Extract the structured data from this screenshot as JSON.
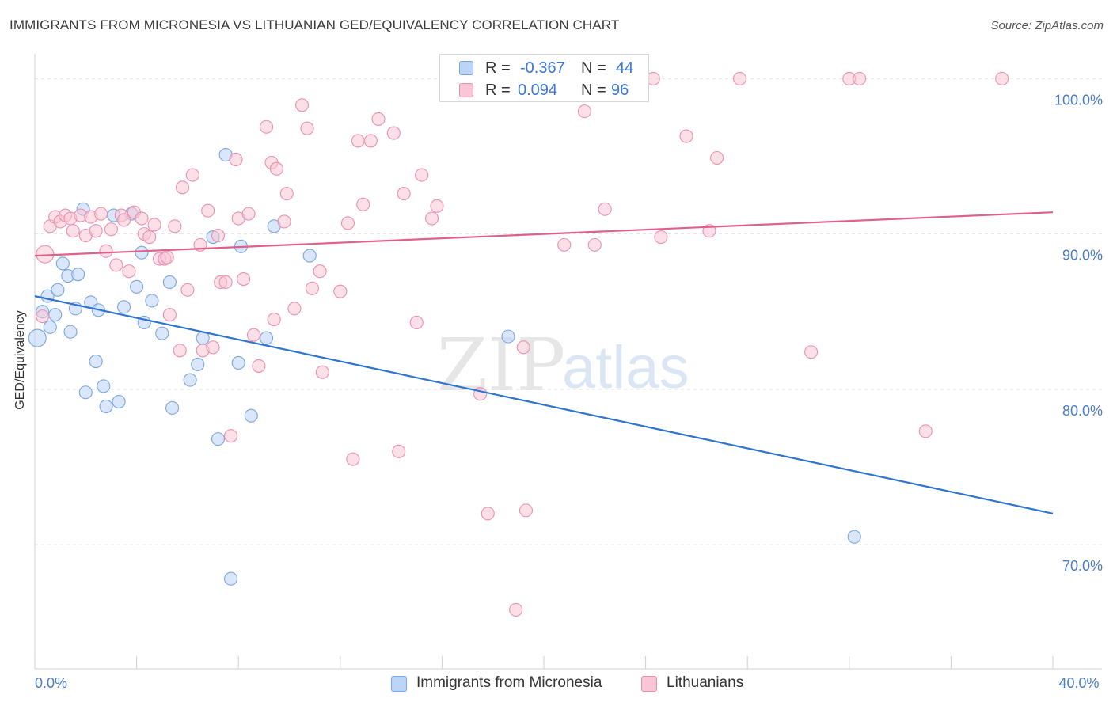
{
  "header": {
    "title": "IMMIGRANTS FROM MICRONESIA VS LITHUANIAN GED/EQUIVALENCY CORRELATION CHART",
    "source": "Source: ZipAtlas.com"
  },
  "watermark": {
    "zip": "ZIP",
    "atlas": "atlas"
  },
  "colors": {
    "blue_fill": "#bcd4f5",
    "blue_stroke": "#7aa6e0",
    "blue_line": "#2f74d0",
    "pink_fill": "#f8c6d6",
    "pink_stroke": "#ec8fb0",
    "pink_line": "#e0608c",
    "axis_label": "#4a7cc7",
    "grid": "#e3e3e3"
  },
  "stats_legend": {
    "rows": [
      {
        "r_label": "R = ",
        "r_value": "-0.367",
        "n_label": "N = ",
        "n_value": "44"
      },
      {
        "r_label": "R = ",
        "r_value": "0.094",
        "n_label": "N = ",
        "n_value": "96"
      }
    ]
  },
  "chart_data": {
    "type": "scatter",
    "title": "IMMIGRANTS FROM MICRONESIA VS LITHUANIAN GED/EQUIVALENCY CORRELATION CHART",
    "xlabel": "",
    "ylabel": "GED/Equivalency",
    "xlim": [
      0,
      40
    ],
    "ylim": [
      62,
      101.5
    ],
    "x_tick_labels": [
      {
        "value": 0,
        "label": "0.0%"
      },
      {
        "value": 40,
        "label": "40.0%"
      }
    ],
    "x_minor_ticks": [
      0,
      4,
      8,
      12,
      16,
      20,
      24,
      28,
      32,
      36,
      40
    ],
    "y_ticks": [
      {
        "value": 70,
        "label": "70.0%"
      },
      {
        "value": 80,
        "label": "80.0%"
      },
      {
        "value": 90,
        "label": "90.0%"
      },
      {
        "value": 100,
        "label": "100.0%"
      }
    ],
    "grid": true,
    "legend_position": "bottom-center",
    "series": [
      {
        "name": "Immigrants from Micronesia",
        "color": "blue",
        "trend": {
          "x": [
            0,
            40
          ],
          "y": [
            86.0,
            72.0
          ]
        },
        "points": [
          [
            0.1,
            83.3,
            2
          ],
          [
            0.3,
            85.0,
            1
          ],
          [
            0.5,
            86.0,
            1
          ],
          [
            0.6,
            84.0,
            1
          ],
          [
            0.8,
            84.8,
            1
          ],
          [
            0.9,
            86.4,
            1
          ],
          [
            1.1,
            88.1,
            1
          ],
          [
            1.3,
            87.3,
            1
          ],
          [
            1.4,
            83.7,
            1
          ],
          [
            1.6,
            85.2,
            1
          ],
          [
            1.7,
            87.4,
            1
          ],
          [
            1.9,
            91.6,
            1
          ],
          [
            2.0,
            79.8,
            1
          ],
          [
            2.2,
            85.6,
            1
          ],
          [
            2.4,
            81.8,
            1
          ],
          [
            2.5,
            85.1,
            1
          ],
          [
            2.7,
            80.2,
            1
          ],
          [
            2.8,
            78.9,
            1
          ],
          [
            3.1,
            91.2,
            1
          ],
          [
            3.3,
            79.2,
            1
          ],
          [
            3.5,
            85.3,
            1
          ],
          [
            3.8,
            91.3,
            1
          ],
          [
            4.0,
            86.6,
            1
          ],
          [
            4.2,
            88.8,
            1
          ],
          [
            4.3,
            84.3,
            1
          ],
          [
            4.6,
            85.7,
            1
          ],
          [
            5.0,
            83.6,
            1
          ],
          [
            5.3,
            86.9,
            1
          ],
          [
            5.4,
            78.8,
            1
          ],
          [
            6.1,
            80.6,
            1
          ],
          [
            6.4,
            81.6,
            1
          ],
          [
            6.6,
            83.3,
            1
          ],
          [
            7.0,
            89.8,
            1
          ],
          [
            7.2,
            76.8,
            1
          ],
          [
            7.5,
            95.1,
            1
          ],
          [
            8.0,
            81.7,
            1
          ],
          [
            8.1,
            89.2,
            1
          ],
          [
            8.5,
            78.3,
            1
          ],
          [
            9.1,
            83.3,
            1
          ],
          [
            9.4,
            90.5,
            1
          ],
          [
            10.8,
            88.6,
            1
          ],
          [
            7.7,
            67.8,
            1
          ],
          [
            18.6,
            83.4,
            1
          ],
          [
            32.2,
            70.5,
            1
          ]
        ]
      },
      {
        "name": "Lithuanians",
        "color": "pink",
        "trend": {
          "x": [
            0,
            40
          ],
          "y": [
            88.6,
            91.4
          ]
        },
        "points": [
          [
            0.3,
            84.7,
            1
          ],
          [
            0.4,
            88.7,
            2
          ],
          [
            0.6,
            90.5,
            1
          ],
          [
            0.8,
            91.1,
            1
          ],
          [
            1.0,
            90.8,
            1
          ],
          [
            1.2,
            91.2,
            1
          ],
          [
            1.4,
            91.0,
            1
          ],
          [
            1.5,
            90.2,
            1
          ],
          [
            1.8,
            91.2,
            1
          ],
          [
            2.0,
            89.9,
            1
          ],
          [
            2.2,
            91.1,
            1
          ],
          [
            2.4,
            90.2,
            1
          ],
          [
            2.6,
            91.3,
            1
          ],
          [
            2.8,
            88.9,
            1
          ],
          [
            3.0,
            90.3,
            1
          ],
          [
            3.2,
            88.0,
            1
          ],
          [
            3.4,
            91.2,
            1
          ],
          [
            3.5,
            90.9,
            1
          ],
          [
            3.7,
            87.6,
            1
          ],
          [
            3.9,
            91.4,
            1
          ],
          [
            4.2,
            91.0,
            1
          ],
          [
            4.3,
            90.0,
            1
          ],
          [
            4.5,
            89.8,
            1
          ],
          [
            4.7,
            90.6,
            1
          ],
          [
            4.9,
            88.4,
            1
          ],
          [
            5.1,
            88.4,
            1
          ],
          [
            5.3,
            84.8,
            1
          ],
          [
            5.5,
            90.5,
            1
          ],
          [
            5.7,
            82.5,
            1
          ],
          [
            5.8,
            93.0,
            1
          ],
          [
            6.0,
            86.4,
            1
          ],
          [
            6.2,
            93.8,
            1
          ],
          [
            6.5,
            89.3,
            1
          ],
          [
            6.6,
            82.5,
            1
          ],
          [
            6.8,
            91.5,
            1
          ],
          [
            7.0,
            82.7,
            1
          ],
          [
            7.2,
            89.9,
            1
          ],
          [
            7.3,
            86.9,
            1
          ],
          [
            7.5,
            86.9,
            1
          ],
          [
            7.7,
            77.0,
            1
          ],
          [
            7.9,
            94.8,
            1
          ],
          [
            8.0,
            91.0,
            1
          ],
          [
            8.2,
            87.1,
            1
          ],
          [
            8.4,
            91.3,
            1
          ],
          [
            8.6,
            83.5,
            1
          ],
          [
            8.8,
            81.5,
            1
          ],
          [
            9.1,
            96.9,
            1
          ],
          [
            9.3,
            94.6,
            1
          ],
          [
            9.4,
            84.5,
            1
          ],
          [
            9.5,
            94.2,
            1
          ],
          [
            9.8,
            90.8,
            1
          ],
          [
            9.9,
            92.6,
            1
          ],
          [
            10.2,
            85.2,
            1
          ],
          [
            10.5,
            98.3,
            1
          ],
          [
            10.7,
            96.8,
            1
          ],
          [
            10.9,
            86.5,
            1
          ],
          [
            11.2,
            87.6,
            1
          ],
          [
            11.3,
            81.1,
            1
          ],
          [
            12.0,
            86.3,
            1
          ],
          [
            12.3,
            90.7,
            1
          ],
          [
            12.5,
            75.5,
            1
          ],
          [
            12.7,
            96.0,
            1
          ],
          [
            12.9,
            91.9,
            1
          ],
          [
            13.2,
            96.0,
            1
          ],
          [
            13.5,
            97.4,
            1
          ],
          [
            14.1,
            96.5,
            1
          ],
          [
            14.3,
            76.0,
            1
          ],
          [
            14.5,
            92.6,
            1
          ],
          [
            15.0,
            84.3,
            1
          ],
          [
            15.2,
            93.8,
            1
          ],
          [
            15.6,
            91.0,
            1
          ],
          [
            15.8,
            91.8,
            1
          ],
          [
            17.5,
            79.7,
            1
          ],
          [
            17.8,
            72.0,
            1
          ],
          [
            18.9,
            65.8,
            1
          ],
          [
            19.2,
            82.7,
            1
          ],
          [
            19.3,
            72.2,
            1
          ],
          [
            20.8,
            89.3,
            1
          ],
          [
            21.6,
            97.9,
            1
          ],
          [
            22.0,
            89.3,
            1
          ],
          [
            22.4,
            91.6,
            1
          ],
          [
            23.0,
            100.0,
            1
          ],
          [
            23.8,
            100.0,
            1
          ],
          [
            24.3,
            100.0,
            1
          ],
          [
            24.6,
            89.8,
            1
          ],
          [
            25.6,
            96.3,
            1
          ],
          [
            26.5,
            90.2,
            1
          ],
          [
            26.8,
            94.9,
            1
          ],
          [
            27.7,
            100.0,
            1
          ],
          [
            30.5,
            82.4,
            1
          ],
          [
            32.0,
            100.0,
            1
          ],
          [
            32.4,
            100.0,
            1
          ],
          [
            35.0,
            77.3,
            1
          ],
          [
            38.0,
            100.0,
            1
          ],
          [
            21.7,
            100.0,
            1
          ],
          [
            5.2,
            88.5,
            1
          ]
        ]
      }
    ]
  }
}
